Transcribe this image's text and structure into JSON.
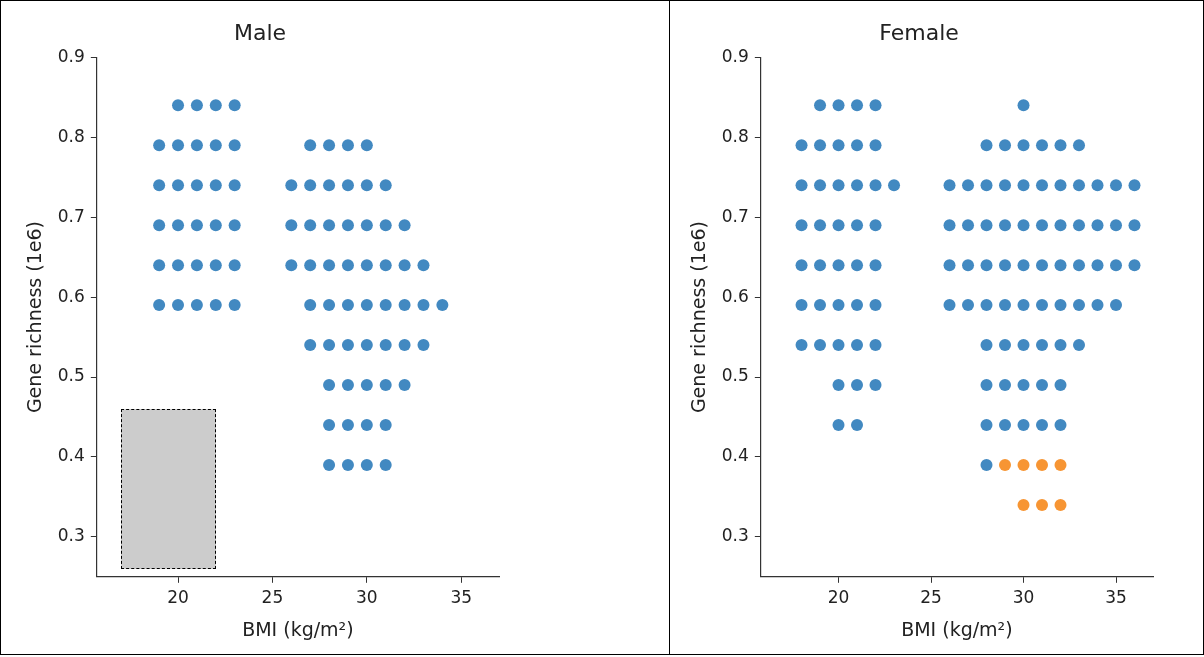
{
  "chart_data": [
    {
      "type": "scatter",
      "title": "Male",
      "xlabel": "BMI (kg/m²)",
      "ylabel": "Gene richness (1e6)",
      "xlim": [
        15.7,
        37
      ],
      "ylim": [
        0.25,
        0.9
      ],
      "xticks": [
        20,
        25,
        30,
        35
      ],
      "yticks": [
        0.3,
        0.4,
        0.5,
        0.6,
        0.7,
        0.8,
        0.9
      ],
      "grid": false,
      "legend": false,
      "marker": "circle",
      "series": [
        {
          "color": "#4289c1",
          "x": [
            20,
            21,
            22,
            23,
            19,
            20,
            21,
            22,
            23,
            27,
            28,
            29,
            30,
            19,
            20,
            21,
            22,
            23,
            26,
            27,
            28,
            29,
            30,
            31,
            19,
            20,
            21,
            22,
            23,
            26,
            27,
            28,
            29,
            30,
            31,
            32,
            19,
            20,
            21,
            22,
            23,
            26,
            27,
            28,
            29,
            30,
            31,
            32,
            33,
            19,
            20,
            21,
            22,
            23,
            27,
            28,
            29,
            30,
            31,
            32,
            33,
            34,
            27,
            28,
            29,
            30,
            31,
            32,
            33,
            28,
            29,
            30,
            31,
            32,
            28,
            29,
            30,
            31,
            28,
            29,
            30,
            31
          ],
          "values": [
            0.84,
            0.84,
            0.84,
            0.84,
            0.79,
            0.79,
            0.79,
            0.79,
            0.79,
            0.79,
            0.79,
            0.79,
            0.79,
            0.74,
            0.74,
            0.74,
            0.74,
            0.74,
            0.74,
            0.74,
            0.74,
            0.74,
            0.74,
            0.74,
            0.69,
            0.69,
            0.69,
            0.69,
            0.69,
            0.69,
            0.69,
            0.69,
            0.69,
            0.69,
            0.69,
            0.69,
            0.64,
            0.64,
            0.64,
            0.64,
            0.64,
            0.64,
            0.64,
            0.64,
            0.64,
            0.64,
            0.64,
            0.64,
            0.64,
            0.59,
            0.59,
            0.59,
            0.59,
            0.59,
            0.59,
            0.59,
            0.59,
            0.59,
            0.59,
            0.59,
            0.59,
            0.59,
            0.54,
            0.54,
            0.54,
            0.54,
            0.54,
            0.54,
            0.54,
            0.49,
            0.49,
            0.49,
            0.49,
            0.49,
            0.44,
            0.44,
            0.44,
            0.44,
            0.39,
            0.39,
            0.39,
            0.39
          ]
        }
      ]
    },
    {
      "type": "scatter",
      "title": "Female",
      "xlabel": "BMI (kg/m²)",
      "ylabel": "Gene richness (1e6)",
      "xlim": [
        15.8,
        37
      ],
      "ylim": [
        0.25,
        0.9
      ],
      "xticks": [
        20,
        25,
        30,
        35
      ],
      "yticks": [
        0.3,
        0.4,
        0.5,
        0.6,
        0.7,
        0.8,
        0.9
      ],
      "grid": false,
      "legend": false,
      "marker": "circle",
      "series": [
        {
          "color": "#4289c1",
          "x": [
            19,
            20,
            21,
            22,
            30,
            18,
            19,
            20,
            21,
            22,
            28,
            29,
            30,
            31,
            32,
            33,
            18,
            19,
            20,
            21,
            22,
            23,
            26,
            27,
            28,
            29,
            30,
            31,
            32,
            33,
            34,
            35,
            36,
            18,
            19,
            20,
            21,
            22,
            26,
            27,
            28,
            29,
            30,
            31,
            32,
            33,
            34,
            35,
            36,
            18,
            19,
            20,
            21,
            22,
            26,
            27,
            28,
            29,
            30,
            31,
            32,
            33,
            34,
            35,
            36,
            18,
            19,
            20,
            21,
            22,
            26,
            27,
            28,
            29,
            30,
            31,
            32,
            33,
            34,
            35,
            18,
            19,
            20,
            21,
            22,
            28,
            29,
            30,
            31,
            32,
            33,
            20,
            21,
            22,
            28,
            29,
            30,
            31,
            32,
            20,
            21,
            28,
            29,
            30,
            31,
            32,
            28
          ],
          "values": [
            0.84,
            0.84,
            0.84,
            0.84,
            0.84,
            0.79,
            0.79,
            0.79,
            0.79,
            0.79,
            0.79,
            0.79,
            0.79,
            0.79,
            0.79,
            0.79,
            0.74,
            0.74,
            0.74,
            0.74,
            0.74,
            0.74,
            0.74,
            0.74,
            0.74,
            0.74,
            0.74,
            0.74,
            0.74,
            0.74,
            0.74,
            0.74,
            0.74,
            0.69,
            0.69,
            0.69,
            0.69,
            0.69,
            0.69,
            0.69,
            0.69,
            0.69,
            0.69,
            0.69,
            0.69,
            0.69,
            0.69,
            0.69,
            0.69,
            0.64,
            0.64,
            0.64,
            0.64,
            0.64,
            0.64,
            0.64,
            0.64,
            0.64,
            0.64,
            0.64,
            0.64,
            0.64,
            0.64,
            0.64,
            0.64,
            0.59,
            0.59,
            0.59,
            0.59,
            0.59,
            0.59,
            0.59,
            0.59,
            0.59,
            0.59,
            0.59,
            0.59,
            0.59,
            0.59,
            0.59,
            0.54,
            0.54,
            0.54,
            0.54,
            0.54,
            0.54,
            0.54,
            0.54,
            0.54,
            0.54,
            0.54,
            0.49,
            0.49,
            0.49,
            0.49,
            0.49,
            0.49,
            0.49,
            0.49,
            0.44,
            0.44,
            0.44,
            0.44,
            0.44,
            0.44,
            0.44,
            0.39
          ]
        },
        {
          "color": "#f79533",
          "x": [
            29,
            30,
            31,
            32,
            30,
            31,
            32
          ],
          "values": [
            0.39,
            0.39,
            0.39,
            0.39,
            0.34,
            0.34,
            0.34
          ]
        }
      ]
    }
  ]
}
